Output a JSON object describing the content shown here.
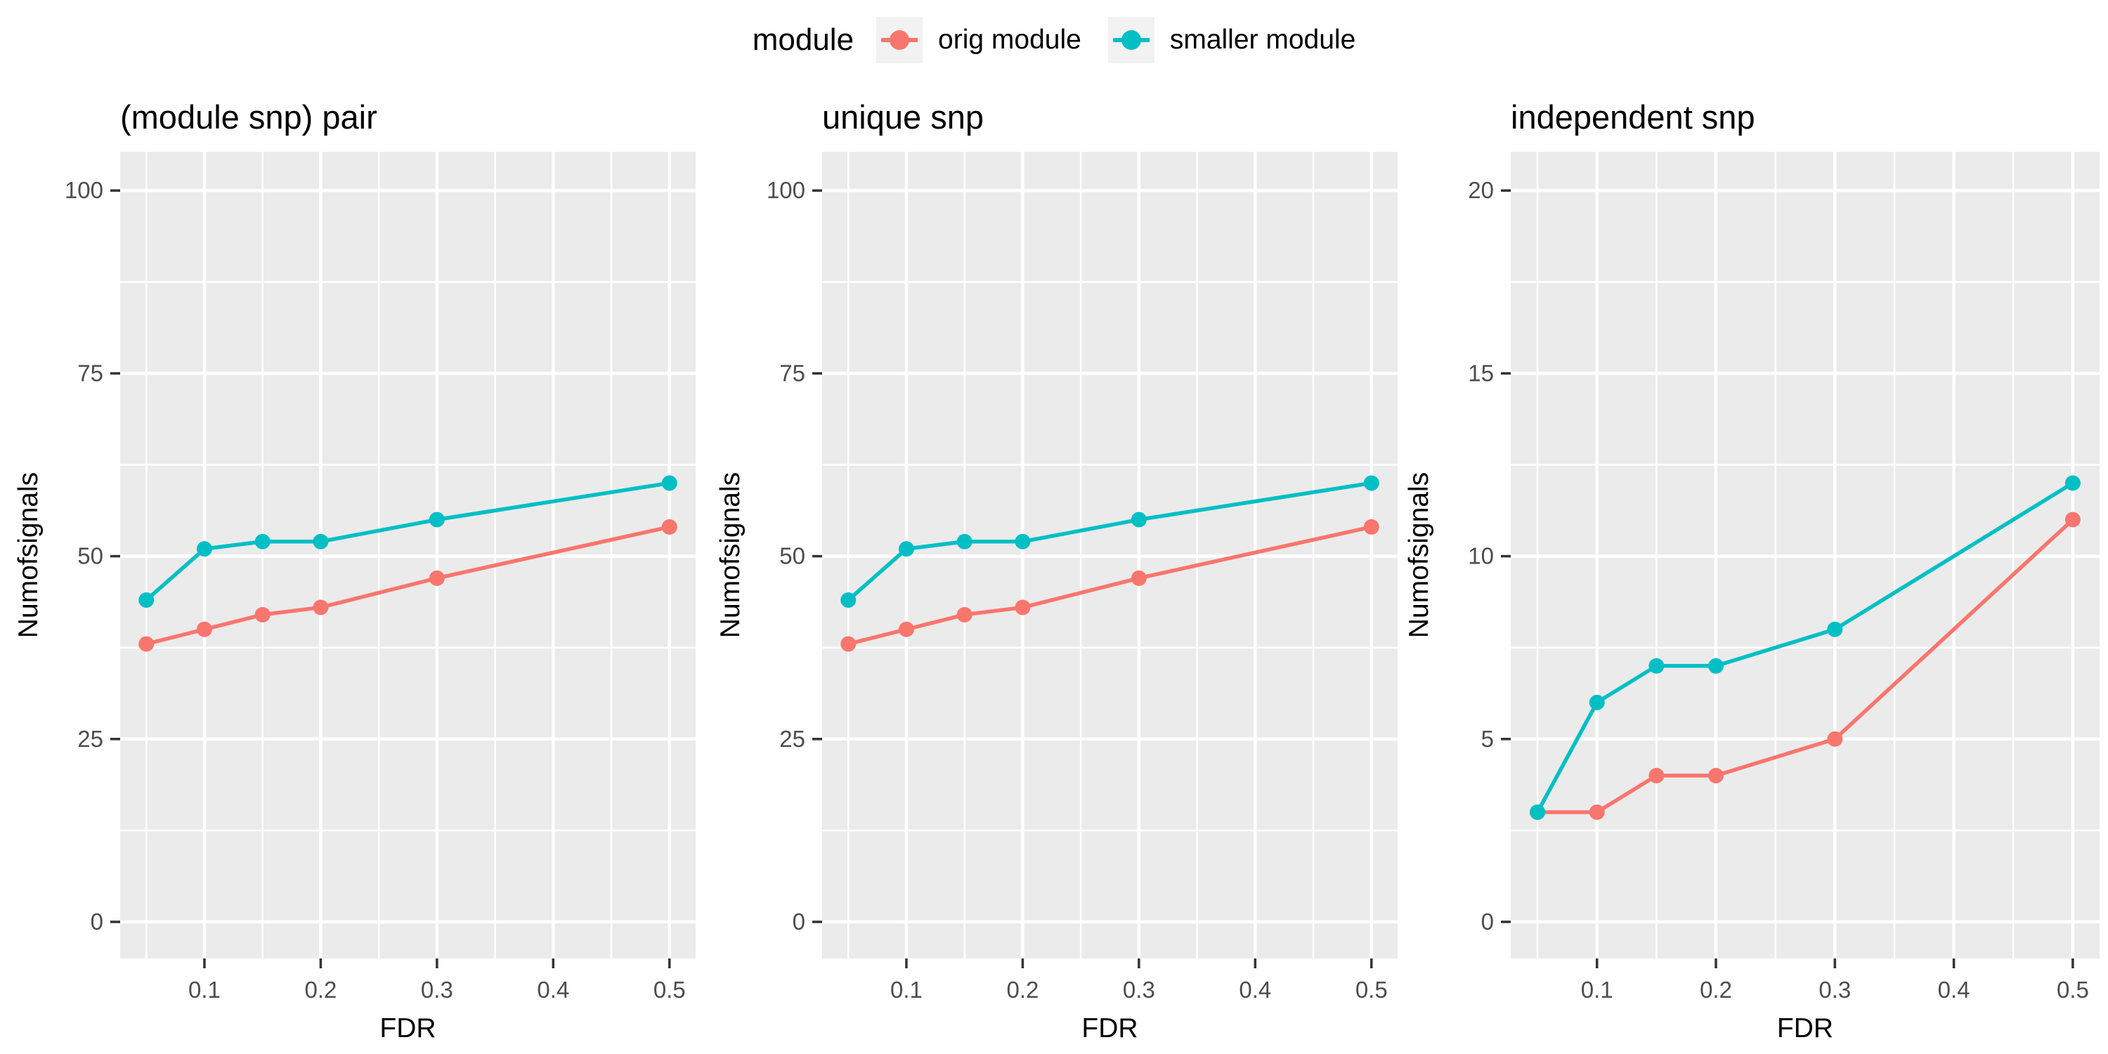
{
  "legend": {
    "title": "module",
    "entries": [
      {
        "label": "orig module",
        "color": "#F8766D"
      },
      {
        "label": "smaller module",
        "color": "#00BFC4"
      }
    ]
  },
  "axes": {
    "xlabel": "FDR",
    "ylabel": "Numofsignals"
  },
  "style": {
    "panel_bg": "#EBEBEB",
    "grid_color": "#FFFFFF",
    "tick_label_color": "#4D4D4D",
    "tick_mark_color": "#333333",
    "title_color": "#000000",
    "legend_key_bg": "#F2F2F2",
    "orig_color": "#F8766D",
    "smaller_color": "#00BFC4"
  },
  "chart_data": [
    {
      "type": "line",
      "title": "(module snp) pair",
      "xlabel": "FDR",
      "ylabel": "Numofsignals",
      "x": [
        0.05,
        0.1,
        0.15,
        0.2,
        0.3,
        0.5
      ],
      "series": [
        {
          "name": "orig module",
          "color": "#F8766D",
          "values": [
            38,
            40,
            42,
            43,
            47,
            54
          ]
        },
        {
          "name": "smaller module",
          "color": "#00BFC4",
          "values": [
            44,
            51,
            52,
            52,
            55,
            60
          ]
        }
      ],
      "xticks": [
        0.1,
        0.2,
        0.3,
        0.4,
        0.5
      ],
      "xminor": [
        0.05,
        0.15,
        0.25,
        0.35,
        0.45
      ],
      "yticks": [
        0,
        25,
        50,
        75,
        100
      ],
      "yminor": [
        12.5,
        37.5,
        62.5,
        87.5
      ],
      "xlim": [
        0.0275,
        0.5225
      ],
      "ylim": [
        -5,
        105.3
      ],
      "grid": true,
      "legend_position": "top"
    },
    {
      "type": "line",
      "title": "unique snp",
      "xlabel": "FDR",
      "ylabel": "Numofsignals",
      "x": [
        0.05,
        0.1,
        0.15,
        0.2,
        0.3,
        0.5
      ],
      "series": [
        {
          "name": "orig module",
          "color": "#F8766D",
          "values": [
            38,
            40,
            42,
            43,
            47,
            54
          ]
        },
        {
          "name": "smaller module",
          "color": "#00BFC4",
          "values": [
            44,
            51,
            52,
            52,
            55,
            60
          ]
        }
      ],
      "xticks": [
        0.1,
        0.2,
        0.3,
        0.4,
        0.5
      ],
      "xminor": [
        0.05,
        0.15,
        0.25,
        0.35,
        0.45
      ],
      "yticks": [
        0,
        25,
        50,
        75,
        100
      ],
      "yminor": [
        12.5,
        37.5,
        62.5,
        87.5
      ],
      "xlim": [
        0.0275,
        0.5225
      ],
      "ylim": [
        -5,
        105.3
      ],
      "grid": true,
      "legend_position": "top"
    },
    {
      "type": "line",
      "title": "independent snp",
      "xlabel": "FDR",
      "ylabel": "Numofsignals",
      "x": [
        0.05,
        0.1,
        0.15,
        0.2,
        0.3,
        0.5
      ],
      "series": [
        {
          "name": "orig module",
          "color": "#F8766D",
          "values": [
            3,
            3,
            4,
            4,
            5,
            11
          ]
        },
        {
          "name": "smaller module",
          "color": "#00BFC4",
          "values": [
            3,
            6,
            7,
            7,
            8,
            12
          ]
        }
      ],
      "xticks": [
        0.1,
        0.2,
        0.3,
        0.4,
        0.5
      ],
      "xminor": [
        0.05,
        0.15,
        0.25,
        0.35,
        0.45
      ],
      "yticks": [
        0,
        5,
        10,
        15,
        20
      ],
      "yminor": [
        2.5,
        7.5,
        12.5,
        17.5
      ],
      "xlim": [
        0.0275,
        0.5225
      ],
      "ylim": [
        -1,
        21.06
      ],
      "grid": true,
      "legend_position": "top"
    }
  ]
}
